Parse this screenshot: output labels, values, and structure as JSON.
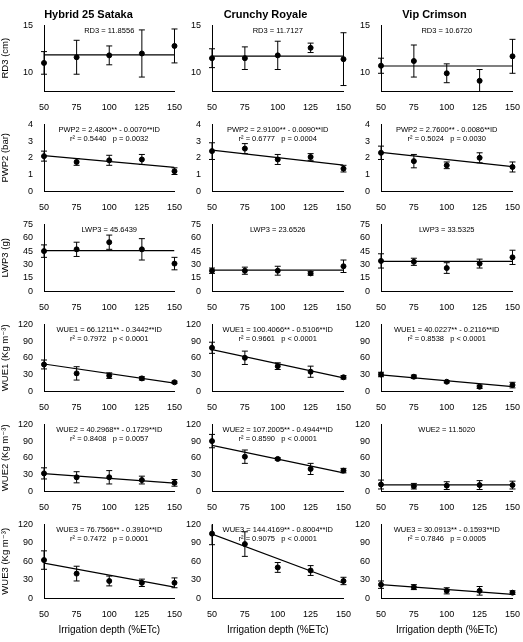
{
  "chart_data": [
    {
      "type": "scatter",
      "title": "Hybrid 25 Sataka",
      "y_label": "RD3 (cm)",
      "x": [
        50,
        75,
        100,
        125,
        150
      ],
      "values": [
        11.0,
        11.6,
        11.8,
        12.0,
        12.8
      ],
      "errors": [
        1.2,
        1.8,
        1.0,
        2.5,
        1.8
      ],
      "fit": {
        "x": [
          50,
          150
        ],
        "values": [
          11.8556,
          11.8556
        ]
      },
      "annotations": [
        "RD3 = 11.8556"
      ],
      "xlim": [
        50,
        150
      ],
      "xticks": [
        50,
        75,
        100,
        125,
        150
      ],
      "ylim": [
        8,
        15
      ],
      "yticks": [
        10,
        15
      ],
      "grid": false,
      "color": "#000000",
      "marker": "circle",
      "line_style": "solid"
    },
    {
      "type": "scatter",
      "title": "Crunchy Royale",
      "x": [
        50,
        75,
        100,
        125,
        150
      ],
      "values": [
        11.5,
        11.5,
        11.8,
        12.6,
        11.4
      ],
      "errors": [
        1.0,
        1.2,
        1.5,
        0.5,
        2.8
      ],
      "fit": {
        "x": [
          50,
          150
        ],
        "values": [
          11.7127,
          11.7127
        ]
      },
      "annotations": [
        "RD3 = 11.7127"
      ],
      "xlim": [
        50,
        150
      ],
      "xticks": [
        50,
        75,
        100,
        125,
        150
      ],
      "ylim": [
        8,
        15
      ],
      "yticks": [
        10,
        15
      ],
      "grid": false,
      "color": "#000000",
      "marker": "circle",
      "line_style": "solid"
    },
    {
      "type": "scatter",
      "title": "Vip Crimson",
      "x": [
        50,
        75,
        100,
        125,
        150
      ],
      "values": [
        10.7,
        11.2,
        9.9,
        9.1,
        11.7
      ],
      "errors": [
        0.8,
        1.7,
        1.0,
        1.2,
        1.8
      ],
      "fit": {
        "x": [
          50,
          150
        ],
        "values": [
          10.672,
          10.672
        ]
      },
      "annotations": [
        "RD3 = 10.6720"
      ],
      "xlim": [
        50,
        150
      ],
      "xticks": [
        50,
        75,
        100,
        125,
        150
      ],
      "ylim": [
        8,
        15
      ],
      "yticks": [
        10,
        15
      ],
      "grid": false,
      "color": "#000000",
      "marker": "circle",
      "line_style": "solid"
    },
    {
      "type": "scatter",
      "y_label": "PWP2 (bar)",
      "x": [
        50,
        75,
        100,
        125,
        150
      ],
      "values": [
        2.1,
        1.75,
        1.85,
        1.9,
        1.2
      ],
      "errors": [
        0.3,
        0.2,
        0.3,
        0.3,
        0.2
      ],
      "fit": {
        "x": [
          50,
          150
        ],
        "values": [
          2.13,
          1.43
        ]
      },
      "annotations": [
        "PWP2 = 2.4800** - 0.0070**ID",
        "r² = 0.5440   p = 0.0032"
      ],
      "xlim": [
        50,
        150
      ],
      "xticks": [
        50,
        75,
        100,
        125,
        150
      ],
      "ylim": [
        0,
        4
      ],
      "yticks": [
        0,
        1,
        2,
        3,
        4
      ],
      "grid": false,
      "color": "#000000",
      "marker": "circle",
      "line_style": "solid"
    },
    {
      "type": "scatter",
      "x": [
        50,
        75,
        100,
        125,
        150
      ],
      "values": [
        2.4,
        2.55,
        1.9,
        2.05,
        1.35
      ],
      "errors": [
        0.5,
        0.3,
        0.3,
        0.2,
        0.2
      ],
      "fit": {
        "x": [
          50,
          150
        ],
        "values": [
          2.46,
          1.56
        ]
      },
      "annotations": [
        "PWP2 = 2.9100** - 0.0090**ID",
        "r² = 0.6777   p = 0.0004"
      ],
      "xlim": [
        50,
        150
      ],
      "xticks": [
        50,
        75,
        100,
        125,
        150
      ],
      "ylim": [
        0,
        4
      ],
      "yticks": [
        0,
        1,
        2,
        3,
        4
      ],
      "grid": false,
      "color": "#000000",
      "marker": "circle",
      "line_style": "solid"
    },
    {
      "type": "scatter",
      "x": [
        50,
        75,
        100,
        125,
        150
      ],
      "values": [
        2.3,
        1.8,
        1.55,
        2.0,
        1.45
      ],
      "errors": [
        0.4,
        0.4,
        0.2,
        0.3,
        0.3
      ],
      "fit": {
        "x": [
          50,
          150
        ],
        "values": [
          2.33,
          1.47
        ]
      },
      "annotations": [
        "PWP2 = 2.7600** - 0.0086**ID",
        "r² = 0.5024   p = 0.0030"
      ],
      "xlim": [
        50,
        150
      ],
      "xticks": [
        50,
        75,
        100,
        125,
        150
      ],
      "ylim": [
        0,
        4
      ],
      "yticks": [
        0,
        1,
        2,
        3,
        4
      ],
      "grid": false,
      "color": "#000000",
      "marker": "circle",
      "line_style": "solid"
    },
    {
      "type": "scatter",
      "y_label": "LWP3 (g)",
      "x": [
        50,
        75,
        100,
        125,
        150
      ],
      "values": [
        45,
        47,
        55,
        47,
        31
      ],
      "errors": [
        7,
        8,
        8,
        12,
        7
      ],
      "fit": {
        "x": [
          50,
          150
        ],
        "values": [
          45.6439,
          45.6439
        ]
      },
      "annotations": [
        "LWP3 = 45.6439"
      ],
      "xlim": [
        50,
        150
      ],
      "xticks": [
        50,
        75,
        100,
        125,
        150
      ],
      "ylim": [
        0,
        75
      ],
      "yticks": [
        0,
        15,
        30,
        45,
        60,
        75
      ],
      "grid": false,
      "color": "#000000",
      "marker": "circle",
      "line_style": "solid"
    },
    {
      "type": "scatter",
      "x": [
        50,
        75,
        100,
        125,
        150
      ],
      "values": [
        23,
        23,
        23,
        20,
        28
      ],
      "errors": [
        3,
        4,
        5,
        2,
        7
      ],
      "fit": {
        "x": [
          50,
          150
        ],
        "values": [
          23.6526,
          23.6526
        ]
      },
      "annotations": [
        "LWP3 = 23.6526"
      ],
      "xlim": [
        50,
        150
      ],
      "xticks": [
        50,
        75,
        100,
        125,
        150
      ],
      "ylim": [
        0,
        75
      ],
      "yticks": [
        0,
        15,
        30,
        45,
        60,
        75
      ],
      "grid": false,
      "color": "#000000",
      "marker": "circle",
      "line_style": "solid"
    },
    {
      "type": "scatter",
      "x": [
        50,
        75,
        100,
        125,
        150
      ],
      "values": [
        34,
        33,
        26,
        31,
        38
      ],
      "errors": [
        8,
        4,
        6,
        5,
        8
      ],
      "fit": {
        "x": [
          50,
          150
        ],
        "values": [
          33.5325,
          33.5325
        ]
      },
      "annotations": [
        "LWP3 = 33.5325"
      ],
      "xlim": [
        50,
        150
      ],
      "xticks": [
        50,
        75,
        100,
        125,
        150
      ],
      "ylim": [
        0,
        75
      ],
      "yticks": [
        0,
        15,
        30,
        45,
        60,
        75
      ],
      "grid": false,
      "color": "#000000",
      "marker": "circle",
      "line_style": "solid"
    },
    {
      "type": "scatter",
      "y_label": "WUE1 (Kg m⁻³)",
      "x": [
        50,
        75,
        100,
        125,
        150
      ],
      "values": [
        48,
        32,
        28,
        23,
        16
      ],
      "errors": [
        8,
        12,
        5,
        3,
        2
      ],
      "fit": {
        "x": [
          50,
          150
        ],
        "values": [
          48.91,
          14.49
        ]
      },
      "annotations": [
        "WUE1 = 66.1211** - 0.3442**ID",
        "r² = 0.7972   p < 0.0001"
      ],
      "xlim": [
        50,
        150
      ],
      "xticks": [
        50,
        75,
        100,
        125,
        150
      ],
      "ylim": [
        0,
        120
      ],
      "yticks": [
        0,
        30,
        60,
        90,
        120
      ],
      "grid": false,
      "color": "#000000",
      "marker": "circle",
      "line_style": "solid"
    },
    {
      "type": "scatter",
      "x": [
        50,
        75,
        100,
        125,
        150
      ],
      "values": [
        78,
        60,
        45,
        35,
        25
      ],
      "errors": [
        10,
        12,
        6,
        10,
        3
      ],
      "fit": {
        "x": [
          50,
          150
        ],
        "values": [
          74.88,
          23.82
        ]
      },
      "annotations": [
        "WUE1 = 100.4066** - 0.5106**ID",
        "r² = 0.9661   p < 0.0001"
      ],
      "xlim": [
        50,
        150
      ],
      "xticks": [
        50,
        75,
        100,
        125,
        150
      ],
      "ylim": [
        0,
        120
      ],
      "yticks": [
        0,
        30,
        60,
        90,
        120
      ],
      "grid": false,
      "color": "#000000",
      "marker": "circle",
      "line_style": "solid"
    },
    {
      "type": "scatter",
      "x": [
        50,
        75,
        100,
        125,
        150
      ],
      "values": [
        30,
        26,
        17,
        8,
        11
      ],
      "errors": [
        4,
        3,
        2,
        3,
        5
      ],
      "fit": {
        "x": [
          50,
          150
        ],
        "values": [
          29.44,
          8.28
        ]
      },
      "annotations": [
        "WUE1 = 40.0227** - 0.2116**ID",
        "r² = 0.8538   p < 0.0001"
      ],
      "xlim": [
        50,
        150
      ],
      "xticks": [
        50,
        75,
        100,
        125,
        150
      ],
      "ylim": [
        0,
        120
      ],
      "yticks": [
        0,
        30,
        60,
        90,
        120
      ],
      "grid": false,
      "color": "#000000",
      "marker": "circle",
      "line_style": "solid"
    },
    {
      "type": "scatter",
      "y_label": "WUE2 (Kg m⁻³)",
      "x": [
        50,
        75,
        100,
        125,
        150
      ],
      "values": [
        32,
        25,
        25,
        20,
        15
      ],
      "errors": [
        10,
        10,
        12,
        7,
        6
      ],
      "fit": {
        "x": [
          50,
          150
        ],
        "values": [
          31.65,
          14.36
        ]
      },
      "annotations": [
        "WUE2 = 40.2968** - 0.1729**ID",
        "r² = 0.8408   p = 0.0057"
      ],
      "xlim": [
        50,
        150
      ],
      "xticks": [
        50,
        75,
        100,
        125,
        150
      ],
      "ylim": [
        0,
        120
      ],
      "yticks": [
        0,
        30,
        60,
        90,
        120
      ],
      "grid": false,
      "color": "#000000",
      "marker": "circle",
      "line_style": "solid"
    },
    {
      "type": "scatter",
      "x": [
        50,
        75,
        100,
        125,
        150
      ],
      "values": [
        90,
        62,
        58,
        40,
        37
      ],
      "errors": [
        12,
        12,
        2,
        10,
        4
      ],
      "fit": {
        "x": [
          50,
          150
        ],
        "values": [
          82.48,
          33.04
        ]
      },
      "annotations": [
        "WUE2 = 107.2005** - 0.4944**ID",
        "r² = 0.8590   p < 0.0001"
      ],
      "xlim": [
        50,
        150
      ],
      "xticks": [
        50,
        75,
        100,
        125,
        150
      ],
      "ylim": [
        0,
        120
      ],
      "yticks": [
        0,
        30,
        60,
        90,
        120
      ],
      "grid": false,
      "color": "#000000",
      "marker": "circle",
      "line_style": "solid"
    },
    {
      "type": "scatter",
      "x": [
        50,
        75,
        100,
        125,
        150
      ],
      "values": [
        12,
        9,
        10,
        11,
        11
      ],
      "errors": [
        8,
        5,
        7,
        8,
        7
      ],
      "fit": {
        "x": [
          50,
          150
        ],
        "values": [
          11.502,
          11.502
        ]
      },
      "annotations": [
        "WUE2 = 11.5020"
      ],
      "xlim": [
        50,
        150
      ],
      "xticks": [
        50,
        75,
        100,
        125,
        150
      ],
      "ylim": [
        0,
        120
      ],
      "yticks": [
        0,
        30,
        60,
        90,
        120
      ],
      "grid": false,
      "color": "#000000",
      "marker": "circle",
      "line_style": "solid"
    },
    {
      "type": "scatter",
      "y_label": "WUE3 (Kg m⁻³)",
      "x_label": "Irrigation depth (%ETc)",
      "x": [
        50,
        75,
        100,
        125,
        150
      ],
      "values": [
        62,
        40,
        28,
        25,
        25
      ],
      "errors": [
        15,
        12,
        8,
        6,
        8
      ],
      "fit": {
        "x": [
          50,
          150
        ],
        "values": [
          57.21,
          18.11
        ]
      },
      "annotations": [
        "WUE3 = 76.7566** - 0.3910**ID",
        "r² = 0.7472   p = 0.0001"
      ],
      "xlim": [
        50,
        150
      ],
      "xticks": [
        50,
        75,
        100,
        125,
        150
      ],
      "ylim": [
        0,
        120
      ],
      "yticks": [
        0,
        30,
        60,
        90,
        120
      ],
      "grid": false,
      "color": "#000000",
      "marker": "circle",
      "line_style": "solid"
    },
    {
      "type": "scatter",
      "x_label": "Irrigation depth (%ETc)",
      "x": [
        50,
        75,
        100,
        125,
        150
      ],
      "values": [
        105,
        88,
        50,
        45,
        28
      ],
      "errors": [
        18,
        20,
        8,
        8,
        6
      ],
      "fit": {
        "x": [
          50,
          150
        ],
        "values": [
          104.4,
          24.36
        ]
      },
      "annotations": [
        "WUE3 = 144.4169** - 0.8004**ID",
        "r² = 0.9075   p < 0.0001"
      ],
      "xlim": [
        50,
        150
      ],
      "xticks": [
        50,
        75,
        100,
        125,
        150
      ],
      "ylim": [
        0,
        120
      ],
      "yticks": [
        0,
        30,
        60,
        90,
        120
      ],
      "grid": false,
      "color": "#000000",
      "marker": "circle",
      "line_style": "solid"
    },
    {
      "type": "scatter",
      "x_label": "Irrigation depth (%ETc)",
      "x": [
        50,
        75,
        100,
        125,
        150
      ],
      "values": [
        22,
        18,
        12,
        12,
        9
      ],
      "errors": [
        6,
        4,
        5,
        7,
        3
      ],
      "fit": {
        "x": [
          50,
          150
        ],
        "values": [
          22.12,
          6.19
        ]
      },
      "annotations": [
        "WUE3 = 30.0913** - 0.1593**ID",
        "r² = 0.7846   p = 0.0005"
      ],
      "xlim": [
        50,
        150
      ],
      "xticks": [
        50,
        75,
        100,
        125,
        150
      ],
      "ylim": [
        0,
        120
      ],
      "yticks": [
        0,
        30,
        60,
        90,
        120
      ],
      "grid": false,
      "color": "#000000",
      "marker": "circle",
      "line_style": "solid"
    }
  ]
}
